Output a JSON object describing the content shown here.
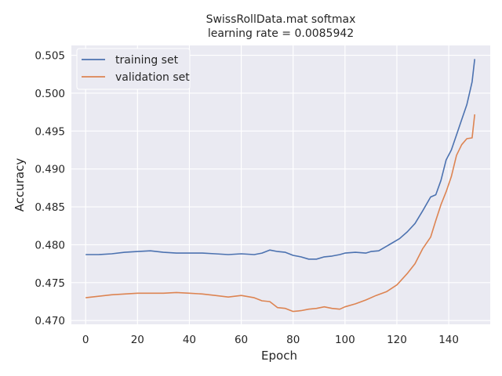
{
  "chart_data": {
    "type": "line",
    "title_line1": "SwissRollData.mat softmax",
    "title_line2": "learning rate =    0.0085942",
    "xlabel": "Epoch",
    "ylabel": "Accuracy",
    "xlim": [
      -5.5,
      156
    ],
    "ylim": [
      0.4695,
      0.5063
    ],
    "xticks": [
      0,
      20,
      40,
      60,
      80,
      100,
      120,
      140
    ],
    "yticks": [
      0.47,
      0.475,
      0.48,
      0.485,
      0.49,
      0.495,
      0.5,
      0.505
    ],
    "ytick_labels": [
      "0.470",
      "0.475",
      "0.480",
      "0.485",
      "0.490",
      "0.495",
      "0.500",
      "0.505"
    ],
    "grid": true,
    "legend_position": "top-left",
    "background_color": "#eaeaf2",
    "series": [
      {
        "name": "training set",
        "color": "#4c72b0",
        "keypoints": [
          [
            0,
            0.4787
          ],
          [
            5,
            0.4787
          ],
          [
            10,
            0.4788
          ],
          [
            15,
            0.479
          ],
          [
            20,
            0.4791
          ],
          [
            25,
            0.4792
          ],
          [
            30,
            0.479
          ],
          [
            35,
            0.4789
          ],
          [
            40,
            0.4789
          ],
          [
            45,
            0.4789
          ],
          [
            50,
            0.4788
          ],
          [
            55,
            0.4787
          ],
          [
            60,
            0.4788
          ],
          [
            65,
            0.4787
          ],
          [
            68,
            0.4789
          ],
          [
            71,
            0.4793
          ],
          [
            74,
            0.4791
          ],
          [
            77,
            0.479
          ],
          [
            80,
            0.4786
          ],
          [
            83,
            0.4784
          ],
          [
            86,
            0.4781
          ],
          [
            89,
            0.4781
          ],
          [
            92,
            0.4784
          ],
          [
            95,
            0.4785
          ],
          [
            98,
            0.4787
          ],
          [
            100,
            0.4789
          ],
          [
            104,
            0.479
          ],
          [
            108,
            0.4789
          ],
          [
            110,
            0.4791
          ],
          [
            113,
            0.4792
          ],
          [
            116,
            0.4798
          ],
          [
            118,
            0.4802
          ],
          [
            121,
            0.4808
          ],
          [
            124,
            0.4817
          ],
          [
            127,
            0.4828
          ],
          [
            130,
            0.4845
          ],
          [
            133,
            0.4863
          ],
          [
            135,
            0.4866
          ],
          [
            137,
            0.4885
          ],
          [
            139,
            0.4912
          ],
          [
            141,
            0.4925
          ],
          [
            143,
            0.4945
          ],
          [
            145,
            0.4965
          ],
          [
            147,
            0.4985
          ],
          [
            149,
            0.5015
          ],
          [
            150,
            0.5045
          ]
        ]
      },
      {
        "name": "validation set",
        "color": "#dd8452",
        "keypoints": [
          [
            0,
            0.473
          ],
          [
            5,
            0.4732
          ],
          [
            10,
            0.4734
          ],
          [
            15,
            0.4735
          ],
          [
            20,
            0.4736
          ],
          [
            25,
            0.4736
          ],
          [
            30,
            0.4736
          ],
          [
            35,
            0.4737
          ],
          [
            40,
            0.4736
          ],
          [
            45,
            0.4735
          ],
          [
            50,
            0.4733
          ],
          [
            55,
            0.4731
          ],
          [
            60,
            0.4733
          ],
          [
            65,
            0.473
          ],
          [
            68,
            0.4726
          ],
          [
            71,
            0.4725
          ],
          [
            74,
            0.4717
          ],
          [
            77,
            0.4716
          ],
          [
            80,
            0.4712
          ],
          [
            83,
            0.4713
          ],
          [
            86,
            0.4715
          ],
          [
            89,
            0.4716
          ],
          [
            92,
            0.4718
          ],
          [
            95,
            0.4716
          ],
          [
            98,
            0.4715
          ],
          [
            100,
            0.4718
          ],
          [
            104,
            0.4722
          ],
          [
            108,
            0.4727
          ],
          [
            112,
            0.4733
          ],
          [
            116,
            0.4738
          ],
          [
            120,
            0.4747
          ],
          [
            124,
            0.4762
          ],
          [
            127,
            0.4775
          ],
          [
            130,
            0.4795
          ],
          [
            133,
            0.481
          ],
          [
            135,
            0.4832
          ],
          [
            137,
            0.4853
          ],
          [
            139,
            0.487
          ],
          [
            141,
            0.489
          ],
          [
            143,
            0.4918
          ],
          [
            145,
            0.4932
          ],
          [
            147,
            0.494
          ],
          [
            149,
            0.4941
          ],
          [
            150,
            0.4972
          ]
        ]
      }
    ]
  }
}
